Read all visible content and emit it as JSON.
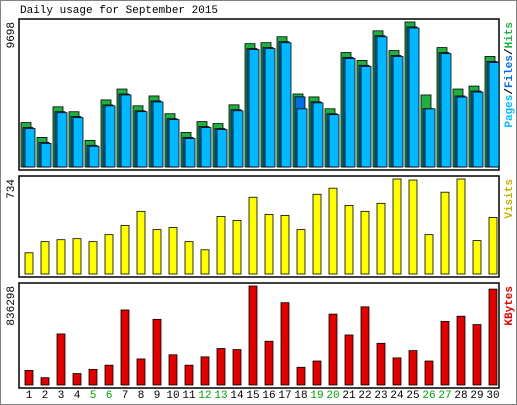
{
  "chart_data": [
    {
      "type": "bar",
      "title": "Daily usage for September 2015",
      "legend_separator": "/",
      "ylim": [
        0,
        9698
      ],
      "series": [
        {
          "name": "Hits",
          "color": "#20b040",
          "values": [
            2970,
            1980,
            4026,
            3696,
            1782,
            4488,
            5214,
            4092,
            4752,
            3564,
            2310,
            3036,
            2904,
            4158,
            8250,
            8316,
            8712,
            4884,
            4686,
            3894,
            7656,
            7128,
            9108,
            7788,
            9698,
            4818,
            7986,
            5214,
            5412,
            7392
          ]
        },
        {
          "name": "Files",
          "color": "#0070e0",
          "values": [
            2640,
            1650,
            3700,
            3370,
            1450,
            4150,
            4880,
            3760,
            4420,
            3230,
            1980,
            2700,
            2570,
            3830,
            7920,
            7990,
            8380,
            4690,
            4360,
            3560,
            7330,
            6800,
            8780,
            7460,
            9370,
            3900,
            7650,
            4750,
            5080,
            7060
          ]
        },
        {
          "name": "Pages",
          "color": "#00b8ff",
          "values": [
            2570,
            1580,
            3630,
            3300,
            1390,
            4090,
            4820,
            3700,
            4350,
            3170,
            1910,
            2640,
            2500,
            3760,
            7850,
            7920,
            8310,
            3890,
            4290,
            3500,
            7260,
            6730,
            8710,
            7390,
            9300,
            3890,
            7580,
            4680,
            5010,
            6990
          ]
        }
      ]
    },
    {
      "type": "bar",
      "ylim": [
        0,
        734
      ],
      "series": [
        {
          "name": "Visits",
          "color": "#ffff00",
          "label_color": "#c8b400",
          "values": [
            164,
            250,
            265,
            273,
            250,
            304,
            375,
            484,
            343,
            359,
            250,
            187,
            445,
            414,
            593,
            460,
            453,
            343,
            616,
            663,
            530,
            484,
            546,
            734,
            726,
            304,
            632,
            734,
            258,
            437
          ]
        }
      ]
    },
    {
      "type": "bar",
      "ylim": [
        0,
        836298
      ],
      "series": [
        {
          "name": "KBytes",
          "color": "#e00000",
          "values": [
            123242,
            61621,
            431347,
            96833,
            132045,
            167257,
            633816,
            220075,
            554589,
            255287,
            167257,
            237681,
            308105,
            299302,
            836298,
            369726,
            695437,
            149651,
            202469,
            598604,
            422544,
            660225,
            352120,
            228878,
            290499,
            202469,
            536983,
            581000,
            510574,
            809889
          ]
        }
      ],
      "categories": [
        "1",
        "2",
        "3",
        "4",
        "5",
        "6",
        "7",
        "8",
        "9",
        "10",
        "11",
        "12",
        "13",
        "14",
        "15",
        "16",
        "17",
        "18",
        "19",
        "20",
        "21",
        "22",
        "23",
        "24",
        "25",
        "26",
        "27",
        "28",
        "29",
        "30"
      ],
      "category_colors": [
        "#000",
        "#000",
        "#000",
        "#000",
        "#00a000",
        "#00a000",
        "#000",
        "#000",
        "#000",
        "#000",
        "#000",
        "#00a000",
        "#00a000",
        "#000",
        "#000",
        "#000",
        "#000",
        "#000",
        "#00a000",
        "#00a000",
        "#000",
        "#000",
        "#000",
        "#000",
        "#000",
        "#00a000",
        "#00a000",
        "#000",
        "#000",
        "#000"
      ]
    }
  ]
}
